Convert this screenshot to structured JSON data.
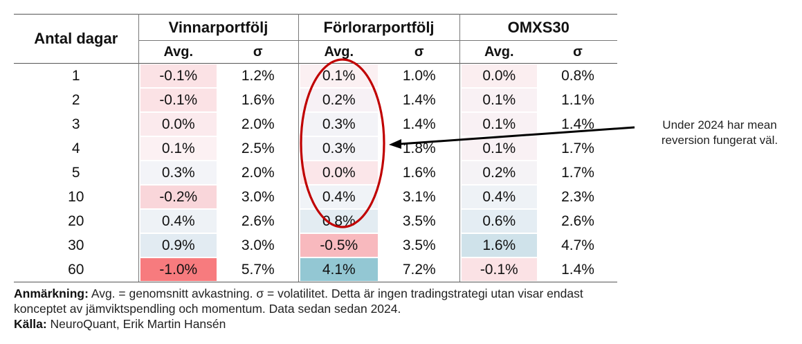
{
  "table": {
    "corner_label": "Antal dagar",
    "groups": [
      "Vinnarportfölj",
      "Förlorarportfölj",
      "OMXS30"
    ],
    "sub_headers": [
      "Avg.",
      "σ",
      "Avg.",
      "σ",
      "Avg.",
      "σ"
    ],
    "rows": [
      {
        "days": "1",
        "cells": [
          "-0.1%",
          "1.2%",
          "0.1%",
          "1.0%",
          "0.0%",
          "0.8%"
        ],
        "colors": [
          "#fbe2e5",
          null,
          "#fbf0f2",
          null,
          "#fbeef0",
          null
        ]
      },
      {
        "days": "2",
        "cells": [
          "-0.1%",
          "1.6%",
          "0.2%",
          "1.4%",
          "0.1%",
          "1.1%"
        ],
        "colors": [
          "#fbe2e5",
          null,
          "#f7f1f5",
          null,
          "#f9f1f4",
          null
        ]
      },
      {
        "days": "3",
        "cells": [
          "0.0%",
          "2.0%",
          "0.3%",
          "1.4%",
          "0.1%",
          "1.4%"
        ],
        "colors": [
          "#fbeaed",
          null,
          "#f3f3f7",
          null,
          "#f9f1f4",
          null
        ]
      },
      {
        "days": "4",
        "cells": [
          "0.1%",
          "2.5%",
          "0.3%",
          "1.8%",
          "0.1%",
          "1.7%"
        ],
        "colors": [
          "#fcf1f3",
          null,
          "#f3f3f7",
          null,
          "#f9f1f4",
          null
        ]
      },
      {
        "days": "5",
        "cells": [
          "0.3%",
          "2.0%",
          "0.0%",
          "1.6%",
          "0.2%",
          "1.7%"
        ],
        "colors": [
          "#f3f4f8",
          null,
          "#fbe6e9",
          null,
          "#f5f3f6",
          null
        ]
      },
      {
        "days": "10",
        "cells": [
          "-0.2%",
          "3.0%",
          "0.4%",
          "3.1%",
          "0.4%",
          "2.3%"
        ],
        "colors": [
          "#f9d6da",
          null,
          "#f0f3f7",
          null,
          "#eef2f6",
          null
        ]
      },
      {
        "days": "20",
        "cells": [
          "0.4%",
          "2.6%",
          "0.8%",
          "3.5%",
          "0.6%",
          "2.6%"
        ],
        "colors": [
          "#eef2f6",
          null,
          "#e3ecf2",
          null,
          "#e4edf3",
          null
        ]
      },
      {
        "days": "30",
        "cells": [
          "0.9%",
          "3.0%",
          "-0.5%",
          "3.5%",
          "1.6%",
          "4.7%"
        ],
        "colors": [
          "#e2ebf2",
          null,
          "#f8b9be",
          null,
          "#cfe2ea",
          null
        ]
      },
      {
        "days": "60",
        "cells": [
          "-1.0%",
          "5.7%",
          "4.1%",
          "7.2%",
          "-0.1%",
          "1.4%"
        ],
        "colors": [
          "#f77b7e",
          null,
          "#93c7d3",
          null,
          "#fbe2e5",
          null
        ]
      }
    ]
  },
  "callout": {
    "text": "Under 2024 har mean reversion fungerat väl."
  },
  "note": {
    "label1": "Anmärkning:",
    "text1": " Avg. = genomsnitt avkastning. σ = volatilitet. Detta är ingen tradingstrategi utan visar endast konceptet av jämviktspendling och momentum. Data sedan sedan 2024.",
    "label2": "Källa:",
    "text2": " NeuroQuant, Erik Martin Hansén"
  },
  "colors": {
    "ellipse": "#c00000",
    "arrow": "#000000"
  }
}
